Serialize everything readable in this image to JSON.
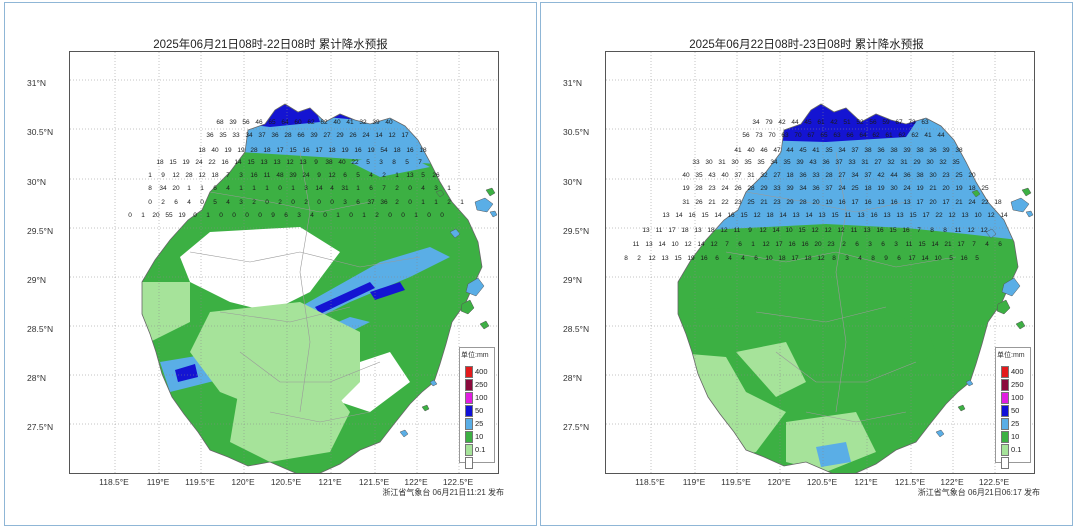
{
  "panels": [
    {
      "title": "2025年06月21日08时-22日08时 累计降水预报",
      "issuer": "浙江省气象台 06月21日11:21 发布"
    },
    {
      "title": "2025年06月22日08时-23日08时 累计降水预报",
      "issuer": "浙江省气象台 06月21日06:17 发布"
    }
  ],
  "y_ticks": [
    "31°N",
    "30.5°N",
    "30°N",
    "29.5°N",
    "29°N",
    "28.5°N",
    "28°N",
    "27.5°N"
  ],
  "x_ticks": [
    "118.5°E",
    "119°E",
    "119.5°E",
    "120°E",
    "120.5°E",
    "121°E",
    "121.5°E",
    "122°E",
    "122.5°E"
  ],
  "legend": {
    "unit": "单位:mm",
    "levels": [
      {
        "label": "400",
        "color": "#e31a1c"
      },
      {
        "label": "250",
        "color": "#8b0a3c"
      },
      {
        "label": "100",
        "color": "#e01ee0"
      },
      {
        "label": "50",
        "color": "#1010d8"
      },
      {
        "label": "25",
        "color": "#5aaee6"
      },
      {
        "label": "10",
        "color": "#3cb043"
      },
      {
        "label": "0.1",
        "color": "#a6e39a"
      }
    ]
  },
  "colors": {
    "ge50": "#1414d2",
    "ge25": "#5aaee6",
    "ge10": "#3cb043",
    "ge01": "#a6e39a",
    "none": "#ffffff"
  },
  "station_values_left": [
    "68",
    "39",
    "56",
    "46",
    "65",
    "64",
    "60",
    "62",
    "62",
    "40",
    "41",
    "32",
    "39",
    "40",
    "36",
    "35",
    "33",
    "34",
    "37",
    "36",
    "28",
    "66",
    "39",
    "27",
    "29",
    "26",
    "24",
    "14",
    "12",
    "17",
    "18",
    "40",
    "19",
    "19",
    "28",
    "18",
    "17",
    "15",
    "16",
    "17",
    "18",
    "19",
    "16",
    "19",
    "54",
    "18",
    "16",
    "18",
    "18",
    "15",
    "19",
    "24",
    "22",
    "16",
    "14",
    "15",
    "13",
    "13",
    "12",
    "13",
    "9",
    "38",
    "40",
    "22",
    "5",
    "3",
    "8",
    "5",
    "7",
    "1",
    "9",
    "12",
    "28",
    "12",
    "18",
    "7",
    "3",
    "16",
    "11",
    "48",
    "39",
    "24",
    "9",
    "12",
    "6",
    "5",
    "4",
    "2",
    "1",
    "13",
    "5",
    "26",
    "8",
    "34",
    "20",
    "1",
    "1",
    "6",
    "4",
    "1",
    "1",
    "1",
    "0",
    "1",
    "3",
    "14",
    "4",
    "31",
    "1",
    "6",
    "7",
    "2",
    "0",
    "4",
    "3",
    "1",
    "0",
    "2",
    "6",
    "4",
    "0",
    "5",
    "4",
    "3",
    "2",
    "0",
    "2",
    "0",
    "2",
    "0",
    "0",
    "3",
    "6",
    "37",
    "36",
    "2",
    "0",
    "1",
    "1",
    "2",
    "1",
    "0",
    "1",
    "20",
    "55",
    "19",
    "0",
    "1",
    "0",
    "0",
    "0",
    "0",
    "9",
    "6",
    "3",
    "4",
    "0",
    "1",
    "0",
    "1",
    "2",
    "0",
    "0",
    "1",
    "0",
    "0"
  ],
  "station_values_right": [
    "34",
    "79",
    "42",
    "44",
    "45",
    "61",
    "42",
    "51",
    "52",
    "56",
    "59",
    "67",
    "73",
    "63",
    "56",
    "73",
    "70",
    "63",
    "70",
    "67",
    "65",
    "63",
    "66",
    "64",
    "62",
    "61",
    "62",
    "62",
    "41",
    "44",
    "41",
    "40",
    "46",
    "47",
    "44",
    "45",
    "41",
    "35",
    "34",
    "37",
    "38",
    "36",
    "38",
    "39",
    "38",
    "36",
    "39",
    "38",
    "33",
    "30",
    "31",
    "30",
    "35",
    "35",
    "34",
    "35",
    "39",
    "43",
    "36",
    "37",
    "33",
    "31",
    "27",
    "32",
    "31",
    "29",
    "30",
    "32",
    "35",
    "40",
    "35",
    "43",
    "40",
    "37",
    "31",
    "32",
    "27",
    "18",
    "36",
    "33",
    "28",
    "27",
    "34",
    "37",
    "42",
    "44",
    "36",
    "38",
    "30",
    "23",
    "25",
    "20",
    "19",
    "28",
    "23",
    "24",
    "26",
    "28",
    "29",
    "33",
    "39",
    "34",
    "36",
    "37",
    "24",
    "25",
    "18",
    "19",
    "30",
    "24",
    "19",
    "21",
    "20",
    "19",
    "18",
    "25",
    "31",
    "26",
    "21",
    "22",
    "23",
    "25",
    "21",
    "23",
    "29",
    "28",
    "20",
    "19",
    "16",
    "17",
    "16",
    "13",
    "16",
    "13",
    "17",
    "20",
    "17",
    "21",
    "24",
    "22",
    "18",
    "13",
    "14",
    "16",
    "15",
    "14",
    "16",
    "15",
    "12",
    "18",
    "14",
    "13",
    "14",
    "13",
    "15",
    "11",
    "13",
    "16",
    "13",
    "13",
    "15",
    "17",
    "22",
    "12",
    "13",
    "10",
    "12",
    "14",
    "13",
    "11",
    "17",
    "18",
    "13",
    "18",
    "12",
    "11",
    "9",
    "12",
    "14",
    "10",
    "15",
    "12",
    "12",
    "12",
    "11",
    "13",
    "16",
    "15",
    "16",
    "7",
    "8",
    "8",
    "11",
    "12",
    "12",
    "11",
    "13",
    "14",
    "10",
    "12",
    "14",
    "12",
    "7",
    "6",
    "1",
    "12",
    "17",
    "16",
    "16",
    "20",
    "23",
    "2",
    "6",
    "3",
    "6",
    "3",
    "11",
    "15",
    "14",
    "21",
    "17",
    "7",
    "4",
    "6",
    "8",
    "2",
    "12",
    "13",
    "15",
    "19",
    "16",
    "6",
    "4",
    "4",
    "6",
    "10",
    "18",
    "17",
    "18",
    "12",
    "8",
    "3",
    "4",
    "8",
    "9",
    "6",
    "17",
    "14",
    "10",
    "5",
    "16",
    "5"
  ]
}
